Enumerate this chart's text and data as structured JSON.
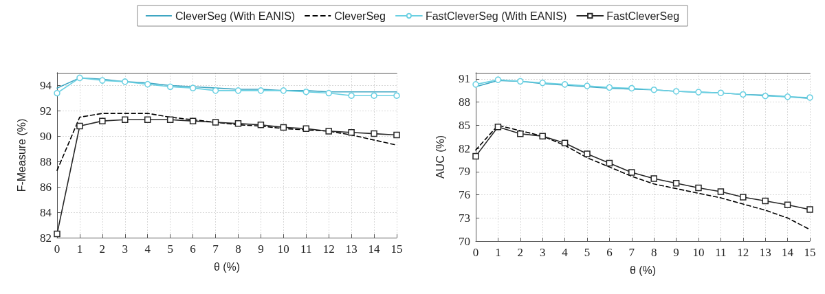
{
  "chart_data": [
    {
      "type": "line",
      "xlabel": "θ (%)",
      "ylabel": "F-Measure (%)",
      "x": [
        0,
        1,
        2,
        3,
        4,
        5,
        6,
        7,
        8,
        9,
        10,
        11,
        12,
        13,
        14,
        15
      ],
      "xlim": [
        0,
        15
      ],
      "xticks": [
        0,
        1,
        2,
        3,
        4,
        5,
        6,
        7,
        8,
        9,
        10,
        11,
        12,
        13,
        14,
        15
      ],
      "ylim": [
        82,
        95
      ],
      "yticks": [
        82,
        84,
        86,
        88,
        90,
        92,
        94
      ],
      "grid": true,
      "legend": "top",
      "series": [
        {
          "name": "CleverSeg (With EANIS)",
          "color": "#3ea6c2",
          "marker": "none",
          "line_style": "solid",
          "values": [
            93.8,
            94.6,
            94.5,
            94.3,
            94.2,
            94.0,
            93.9,
            93.8,
            93.7,
            93.7,
            93.6,
            93.6,
            93.5,
            93.5,
            93.5,
            93.5
          ]
        },
        {
          "name": "CleverSeg",
          "color": "#000000",
          "marker": "none",
          "line_style": "dashed",
          "values": [
            87.3,
            91.5,
            91.8,
            91.8,
            91.8,
            91.5,
            91.3,
            91.1,
            90.9,
            90.8,
            90.6,
            90.5,
            90.4,
            90.1,
            89.7,
            89.3
          ]
        },
        {
          "name": "FastCleverSeg (With EANIS)",
          "color": "#6ad0e2",
          "marker": "circle",
          "line_style": "solid",
          "values": [
            93.4,
            94.6,
            94.4,
            94.3,
            94.1,
            93.9,
            93.8,
            93.6,
            93.6,
            93.6,
            93.6,
            93.5,
            93.4,
            93.2,
            93.2,
            93.2
          ]
        },
        {
          "name": "FastCleverSeg",
          "color": "#262626",
          "marker": "square",
          "line_style": "solid",
          "values": [
            82.3,
            90.8,
            91.2,
            91.3,
            91.3,
            91.3,
            91.2,
            91.1,
            91.0,
            90.9,
            90.7,
            90.6,
            90.4,
            90.3,
            90.2,
            90.1
          ]
        }
      ]
    },
    {
      "type": "line",
      "xlabel": "θ (%)",
      "ylabel": "AUC (%)",
      "x": [
        0,
        1,
        2,
        3,
        4,
        5,
        6,
        7,
        8,
        9,
        10,
        11,
        12,
        13,
        14,
        15
      ],
      "xlim": [
        0,
        15
      ],
      "xticks": [
        0,
        1,
        2,
        3,
        4,
        5,
        6,
        7,
        8,
        9,
        10,
        11,
        12,
        13,
        14,
        15
      ],
      "ylim": [
        70,
        91.8
      ],
      "yticks": [
        70,
        73,
        76,
        79,
        82,
        85,
        88,
        91
      ],
      "grid": true,
      "series": [
        {
          "name": "CleverSeg (With EANIS)",
          "color": "#3ea6c2",
          "marker": "none",
          "line_style": "solid",
          "values": [
            90.0,
            90.8,
            90.7,
            90.4,
            90.2,
            90.0,
            89.8,
            89.7,
            89.6,
            89.4,
            89.3,
            89.2,
            89.0,
            88.9,
            88.7,
            88.5
          ]
        },
        {
          "name": "CleverSeg",
          "color": "#000000",
          "marker": "none",
          "line_style": "dashed",
          "values": [
            81.8,
            85.0,
            84.3,
            83.6,
            82.4,
            80.8,
            79.6,
            78.4,
            77.4,
            76.8,
            76.2,
            75.6,
            74.8,
            74.0,
            73.0,
            71.5
          ]
        },
        {
          "name": "FastCleverSeg (With EANIS)",
          "color": "#6ad0e2",
          "marker": "circle",
          "line_style": "solid",
          "values": [
            90.3,
            90.9,
            90.7,
            90.5,
            90.3,
            90.1,
            89.9,
            89.8,
            89.6,
            89.4,
            89.3,
            89.2,
            89.0,
            88.8,
            88.7,
            88.6
          ]
        },
        {
          "name": "FastCleverSeg",
          "color": "#262626",
          "marker": "square",
          "line_style": "solid",
          "values": [
            81.0,
            84.8,
            83.9,
            83.6,
            82.7,
            81.3,
            80.1,
            78.9,
            78.1,
            77.5,
            76.9,
            76.4,
            75.7,
            75.2,
            74.7,
            74.1
          ]
        }
      ]
    }
  ]
}
